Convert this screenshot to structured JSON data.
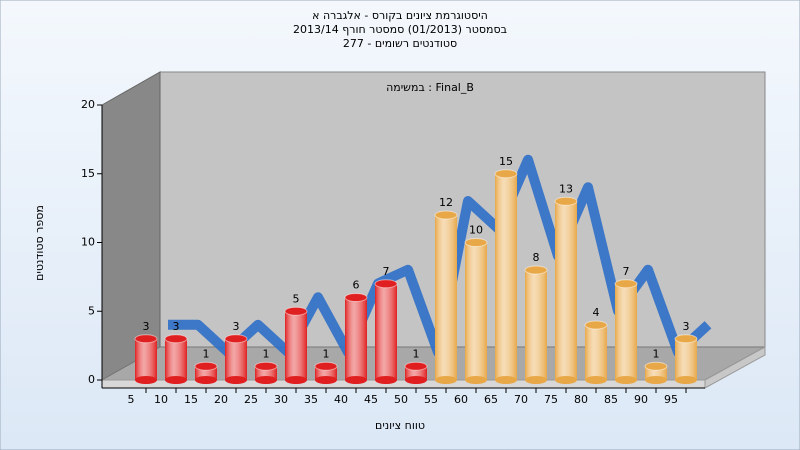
{
  "chart_data": {
    "type": "bar",
    "title": "היסטוגרמת ציונים בקורס - אלגברה א",
    "subtitle": "בסמסטר  (01/2013)  סמסטר חורף 2013/14",
    "subtitle2": "סטודנטים רשומים - 277",
    "annotation": "במשימה : Final_B",
    "x_label": "טווח ציונים",
    "y_label": "מספר סטודנטים",
    "categories": [
      "5",
      "10",
      "15",
      "20",
      "25",
      "30",
      "35",
      "40",
      "45",
      "50",
      "55",
      "60",
      "65",
      "70",
      "75",
      "80",
      "85",
      "90",
      "95"
    ],
    "values": [
      3,
      3,
      1,
      3,
      1,
      5,
      1,
      6,
      7,
      1,
      12,
      10,
      15,
      8,
      13,
      4,
      7,
      1,
      3
    ],
    "colors": [
      "#e02020",
      "#e02020",
      "#e02020",
      "#e02020",
      "#e02020",
      "#e02020",
      "#e02020",
      "#e02020",
      "#e02020",
      "#e02020",
      "#e8a848",
      "#e8a848",
      "#e8a848",
      "#e8a848",
      "#e8a848",
      "#e8a848",
      "#e8a848",
      "#e8a848",
      "#e8a848"
    ],
    "line_color": "#2f6fc8",
    "ylim": [
      0,
      20
    ],
    "yticks": [
      0,
      5,
      10,
      15,
      20
    ],
    "grid": false
  }
}
